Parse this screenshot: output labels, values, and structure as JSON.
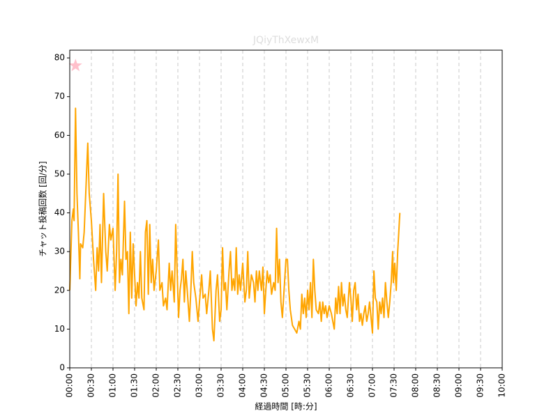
{
  "chart_data": {
    "type": "line",
    "title": "JQiyThXewxM",
    "xlabel": "経過時間 [時:分]",
    "ylabel": "チャット投稿回数 [回/分]",
    "xlim": [
      0,
      600
    ],
    "ylim": [
      0,
      82
    ],
    "xticks": [
      {
        "value": 0,
        "label": "00:00"
      },
      {
        "value": 30,
        "label": "00:30"
      },
      {
        "value": 60,
        "label": "01:00"
      },
      {
        "value": 90,
        "label": "01:30"
      },
      {
        "value": 120,
        "label": "02:00"
      },
      {
        "value": 150,
        "label": "02:30"
      },
      {
        "value": 180,
        "label": "03:00"
      },
      {
        "value": 210,
        "label": "03:30"
      },
      {
        "value": 240,
        "label": "04:00"
      },
      {
        "value": 270,
        "label": "04:30"
      },
      {
        "value": 300,
        "label": "05:00"
      },
      {
        "value": 330,
        "label": "05:30"
      },
      {
        "value": 360,
        "label": "06:00"
      },
      {
        "value": 390,
        "label": "06:30"
      },
      {
        "value": 420,
        "label": "07:00"
      },
      {
        "value": 450,
        "label": "07:30"
      },
      {
        "value": 480,
        "label": "08:00"
      },
      {
        "value": 510,
        "label": "08:30"
      },
      {
        "value": 540,
        "label": "09:00"
      },
      {
        "value": 570,
        "label": "09:30"
      },
      {
        "value": 600,
        "label": "10:00"
      }
    ],
    "yticks": [
      0,
      10,
      20,
      30,
      40,
      50,
      60,
      70,
      80
    ],
    "grid": "x",
    "series": [
      {
        "color": "#ffa500",
        "x": [
          0,
          3,
          5,
          6,
          8,
          10,
          12,
          14,
          15,
          18,
          20,
          25,
          27,
          30,
          33,
          36,
          38,
          40,
          42,
          44,
          47,
          50,
          52,
          55,
          57,
          60,
          63,
          65,
          67,
          69,
          71,
          73,
          76,
          78,
          80,
          82,
          84,
          86,
          88,
          90,
          92,
          94,
          96,
          98,
          100,
          103,
          105,
          107,
          109,
          111,
          113,
          115,
          117,
          120,
          123,
          125,
          128,
          130,
          133,
          135,
          138,
          140,
          142,
          145,
          147,
          149,
          151,
          153,
          155,
          157,
          159,
          161,
          163,
          166,
          168,
          170,
          172,
          175,
          178,
          180,
          183,
          185,
          188,
          190,
          193,
          195,
          198,
          200,
          203,
          205,
          208,
          210,
          212,
          214,
          216,
          218,
          221,
          223,
          225,
          227,
          229,
          231,
          233,
          235,
          237,
          240,
          243,
          245,
          247,
          249,
          252,
          255,
          257,
          259,
          261,
          263,
          266,
          268,
          270,
          272,
          274,
          276,
          278,
          280,
          283,
          285,
          287,
          289,
          291,
          293,
          295,
          298,
          300,
          302,
          304,
          306,
          309,
          312,
          315,
          318,
          320,
          322,
          324,
          326,
          328,
          330,
          332,
          334,
          336,
          338,
          340,
          342,
          345,
          347,
          349,
          351,
          353,
          355,
          357,
          360,
          363,
          365,
          367,
          369,
          371,
          373,
          375,
          377,
          379,
          381,
          383,
          385,
          388,
          390,
          392,
          394,
          396,
          398,
          400,
          402,
          404,
          406,
          408,
          410,
          412,
          414,
          416,
          418,
          420,
          422,
          424,
          426,
          428,
          430,
          432,
          434,
          436,
          438,
          440,
          442,
          444,
          446,
          448,
          449,
          451,
          453,
          455,
          458
        ],
        "values": [
          20,
          38,
          41,
          38,
          67,
          45,
          35,
          23,
          32,
          31,
          35,
          58,
          45,
          38,
          28,
          20,
          31,
          25,
          37,
          22,
          45,
          30,
          25,
          37,
          33,
          36,
          20,
          30,
          50,
          22,
          28,
          24,
          43,
          28,
          30,
          14,
          35,
          18,
          32,
          24,
          16,
          22,
          18,
          30,
          18,
          15,
          35,
          38,
          19,
          37,
          22,
          28,
          20,
          25,
          33,
          20,
          22,
          16,
          18,
          15,
          27,
          20,
          25,
          17,
          37,
          25,
          13,
          20,
          23,
          28,
          17,
          25,
          20,
          12,
          20,
          30,
          22,
          18,
          12,
          17,
          24,
          18,
          19,
          14,
          20,
          25,
          10,
          7,
          20,
          24,
          12,
          15,
          31,
          20,
          22,
          15,
          25,
          30,
          20,
          23,
          20,
          31,
          19,
          24,
          20,
          27,
          17,
          20,
          30,
          18,
          24,
          22,
          17,
          25,
          20,
          25,
          20,
          26,
          14,
          20,
          25,
          22,
          24,
          19,
          22,
          20,
          36,
          22,
          28,
          17,
          13,
          22,
          28,
          28,
          20,
          15,
          11,
          10,
          9,
          12,
          10,
          19,
          14,
          18,
          13,
          20,
          15,
          22,
          13,
          28,
          20,
          15,
          14,
          17,
          12,
          17,
          14,
          16,
          13,
          16,
          14,
          12,
          10,
          18,
          14,
          21,
          14,
          22,
          16,
          19,
          15,
          13,
          22,
          18,
          12,
          20,
          22,
          15,
          19,
          12,
          14,
          11,
          14,
          16,
          12,
          14,
          17,
          13,
          9,
          25,
          18,
          17,
          10,
          17,
          14,
          18,
          13,
          22,
          17,
          13,
          17,
          22,
          30,
          22,
          27,
          20,
          30,
          40
        ]
      }
    ],
    "annotations": [
      {
        "x": 8,
        "y": 78,
        "color": "#ffc0cb",
        "marker": "star"
      }
    ]
  }
}
